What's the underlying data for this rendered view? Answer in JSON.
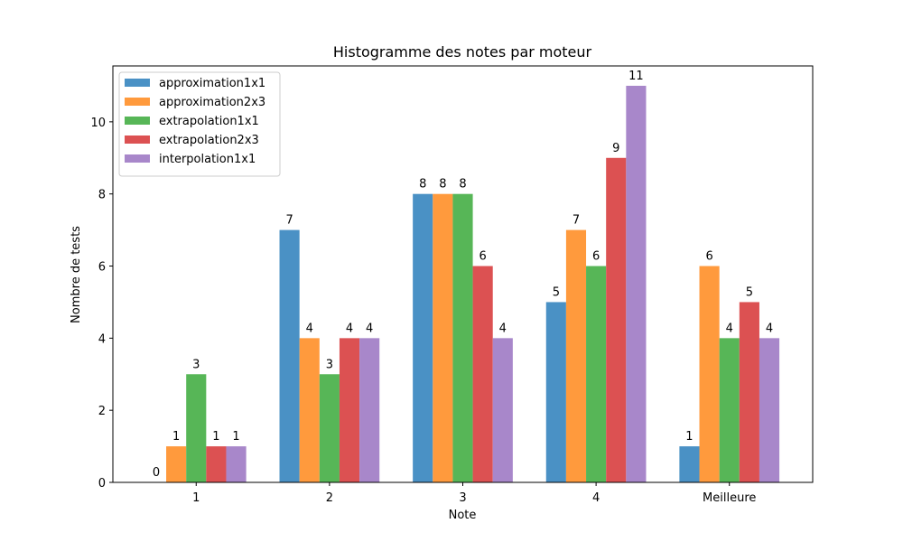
{
  "chart_data": {
    "type": "bar",
    "title": "Histogramme des notes par moteur",
    "xlabel": "Note",
    "ylabel": "Nombre de tests",
    "categories": [
      "1",
      "2",
      "3",
      "4",
      "Meilleure"
    ],
    "ylim": [
      0,
      11.55
    ],
    "yticks": [
      0,
      2,
      4,
      6,
      8,
      10
    ],
    "grid": false,
    "legend_position": "top-left",
    "series": [
      {
        "name": "approximation1x1",
        "color": "#4a91c5",
        "values": [
          0,
          7,
          8,
          5,
          1
        ]
      },
      {
        "name": "approximation2x3",
        "color": "#ff9a3d",
        "values": [
          1,
          4,
          8,
          7,
          6
        ]
      },
      {
        "name": "extrapolation1x1",
        "color": "#57b657",
        "values": [
          3,
          3,
          8,
          6,
          4
        ]
      },
      {
        "name": "extrapolation2x3",
        "color": "#dc5152",
        "values": [
          1,
          4,
          6,
          9,
          5
        ]
      },
      {
        "name": "interpolation1x1",
        "color": "#a887ca",
        "values": [
          1,
          4,
          4,
          11,
          4
        ]
      }
    ]
  }
}
